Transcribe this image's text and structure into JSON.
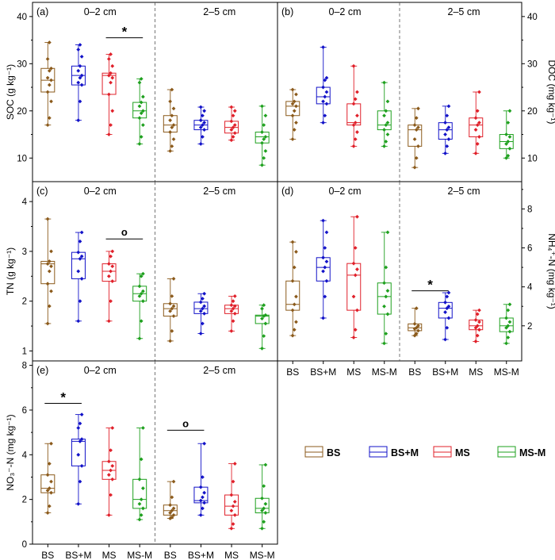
{
  "colors": {
    "BS": "#8B5A1B",
    "BS+M": "#1212C8",
    "MS": "#E0202A",
    "MS-M": "#1EA01E"
  },
  "groups": [
    "BS",
    "BS+M",
    "MS",
    "MS-M"
  ],
  "depth_labels": [
    "0–2 cm",
    "2–5 cm"
  ],
  "legend": [
    "BS",
    "BS+M",
    "MS",
    "MS-M"
  ],
  "chart_data": [
    {
      "type": "box",
      "panel_label": "(a)",
      "ylabel": "SOC (g kg⁻¹)",
      "y_axis_side": "left",
      "ylim": [
        5,
        43
      ],
      "yticks": [
        10,
        20,
        30,
        40
      ],
      "series": [
        {
          "name": "BS",
          "depth": "0–2 cm",
          "q1": 24,
          "median": 26.5,
          "q3": 29,
          "whisker_low": 17,
          "whisker_high": 34.5,
          "points": [
            17,
            18.5,
            22,
            24,
            25.5,
            26.5,
            27,
            28.5,
            29,
            31,
            34.5
          ]
        },
        {
          "name": "BS+M",
          "depth": "0–2 cm",
          "q1": 25.5,
          "median": 27.5,
          "q3": 29.5,
          "whisker_low": 18,
          "whisker_high": 34,
          "points": [
            18,
            22,
            25.5,
            26,
            27,
            27.5,
            28.5,
            29.5,
            31.5,
            33,
            34
          ]
        },
        {
          "name": "MS",
          "depth": "0–2 cm",
          "q1": 23.5,
          "median": 27.5,
          "q3": 28,
          "whisker_low": 15,
          "whisker_high": 32,
          "points": [
            15,
            17,
            20,
            23.5,
            26,
            27,
            27.5,
            28,
            29.5,
            31,
            32
          ]
        },
        {
          "name": "MS-M",
          "depth": "0–2 cm",
          "q1": 18.5,
          "median": 20,
          "q3": 21.8,
          "whisker_low": 13,
          "whisker_high": 26.8,
          "points": [
            13,
            14.5,
            17,
            18.5,
            19.5,
            20,
            21,
            21.8,
            23,
            26,
            26.8
          ]
        },
        {
          "name": "BS",
          "depth": "2–5 cm",
          "q1": 15.5,
          "median": 17,
          "q3": 19,
          "whisker_low": 11.5,
          "whisker_high": 24.5,
          "points": [
            11.5,
            12.5,
            14,
            15.5,
            16.5,
            17,
            18,
            19,
            20.5,
            22,
            24.5
          ]
        },
        {
          "name": "BS+M",
          "depth": "2–5 cm",
          "q1": 16,
          "median": 17,
          "q3": 18,
          "whisker_low": 13,
          "whisker_high": 20.8,
          "points": [
            13,
            14.5,
            16,
            16.5,
            17,
            17.5,
            18,
            19,
            20,
            20.8
          ]
        },
        {
          "name": "MS",
          "depth": "2–5 cm",
          "q1": 15.3,
          "median": 16.5,
          "q3": 17.8,
          "whisker_low": 13.8,
          "whisker_high": 20.8,
          "points": [
            13.8,
            14.5,
            15.3,
            16,
            16.5,
            17,
            17.8,
            19,
            20,
            20.8
          ]
        },
        {
          "name": "MS-M",
          "depth": "2–5 cm",
          "q1": 13.2,
          "median": 14.5,
          "q3": 15.5,
          "whisker_low": 8.5,
          "whisker_high": 21,
          "points": [
            8.5,
            10,
            11.5,
            13.2,
            14,
            14.5,
            15.5,
            17,
            19,
            21
          ]
        }
      ],
      "annotations": [
        {
          "text": "*",
          "depth": "0–2 cm",
          "between": [
            "MS",
            "MS-M"
          ],
          "y": 35.5
        }
      ]
    },
    {
      "type": "box",
      "panel_label": "(b)",
      "ylabel": "DOC (mg kg⁻¹)",
      "y_axis_side": "right",
      "ylim": [
        5,
        43
      ],
      "yticks": [
        10,
        20,
        30,
        40
      ],
      "series": [
        {
          "name": "BS",
          "depth": "0–2 cm",
          "q1": 19,
          "median": 21,
          "q3": 22,
          "whisker_low": 14,
          "whisker_high": 24.5,
          "points": [
            14,
            16,
            17.5,
            19,
            20,
            21,
            21.5,
            22,
            23.5,
            24.5
          ]
        },
        {
          "name": "BS+M",
          "depth": "0–2 cm",
          "q1": 21.5,
          "median": 23,
          "q3": 25,
          "whisker_low": 17.5,
          "whisker_high": 33.5,
          "points": [
            17.5,
            19,
            21.5,
            22,
            23,
            24,
            25,
            26.5,
            27,
            33.5
          ]
        },
        {
          "name": "MS",
          "depth": "0–2 cm",
          "q1": 17,
          "median": 17.5,
          "q3": 21.5,
          "whisker_low": 12.5,
          "whisker_high": 29.5,
          "points": [
            12.5,
            14,
            15.5,
            17,
            17.5,
            19,
            21.5,
            22.5,
            24,
            29.5
          ]
        },
        {
          "name": "MS-M",
          "depth": "0–2 cm",
          "q1": 16,
          "median": 17,
          "q3": 20,
          "whisker_low": 12.5,
          "whisker_high": 26,
          "points": [
            12.5,
            13.5,
            15,
            16,
            17,
            17.5,
            19,
            20,
            22,
            26
          ]
        },
        {
          "name": "BS",
          "depth": "2–5 cm",
          "q1": 12.5,
          "median": 16,
          "q3": 17,
          "whisker_low": 8,
          "whisker_high": 20.5,
          "points": [
            8,
            10,
            12.5,
            14,
            16,
            16.5,
            17,
            18.5,
            20.5
          ]
        },
        {
          "name": "BS+M",
          "depth": "2–5 cm",
          "q1": 14,
          "median": 16,
          "q3": 17.5,
          "whisker_low": 11,
          "whisker_high": 21,
          "points": [
            11,
            12.5,
            14,
            15,
            16,
            16.5,
            17.5,
            19,
            21
          ]
        },
        {
          "name": "MS",
          "depth": "2–5 cm",
          "q1": 14.5,
          "median": 17,
          "q3": 18.5,
          "whisker_low": 11,
          "whisker_high": 24,
          "points": [
            11,
            13,
            14.5,
            16,
            17,
            17.5,
            18.5,
            20,
            24
          ]
        },
        {
          "name": "MS-M",
          "depth": "2–5 cm",
          "q1": 12,
          "median": 13.5,
          "q3": 15,
          "whisker_low": 10,
          "whisker_high": 20,
          "points": [
            10,
            10.5,
            12,
            13,
            13.5,
            14.5,
            15,
            17.5,
            20
          ]
        }
      ],
      "annotations": []
    },
    {
      "type": "box",
      "panel_label": "(c)",
      "ylabel": "TN (g kg⁻¹)",
      "y_axis_side": "left",
      "ylim": [
        0.8,
        4.4
      ],
      "yticks": [
        1,
        2,
        3,
        4
      ],
      "series": [
        {
          "name": "BS",
          "depth": "0–2 cm",
          "q1": 2.35,
          "median": 2.75,
          "q3": 2.8,
          "whisker_low": 1.55,
          "whisker_high": 3.65,
          "points": [
            1.55,
            1.9,
            2.2,
            2.35,
            2.6,
            2.7,
            2.75,
            2.8,
            3.0,
            3.65
          ]
        },
        {
          "name": "BS+M",
          "depth": "0–2 cm",
          "q1": 2.45,
          "median": 2.85,
          "q3": 2.98,
          "whisker_low": 1.6,
          "whisker_high": 3.38,
          "points": [
            1.6,
            2.0,
            2.45,
            2.6,
            2.85,
            2.9,
            2.98,
            3.2,
            3.38
          ]
        },
        {
          "name": "MS",
          "depth": "0–2 cm",
          "q1": 2.4,
          "median": 2.6,
          "q3": 2.75,
          "whisker_low": 1.6,
          "whisker_high": 3.0,
          "points": [
            1.6,
            2.0,
            2.4,
            2.5,
            2.6,
            2.7,
            2.75,
            2.9,
            3.0
          ]
        },
        {
          "name": "MS-M",
          "depth": "0–2 cm",
          "q1": 2.0,
          "median": 2.15,
          "q3": 2.3,
          "whisker_low": 1.25,
          "whisker_high": 2.55,
          "points": [
            1.25,
            1.6,
            2.0,
            2.1,
            2.15,
            2.2,
            2.3,
            2.5,
            2.55
          ]
        },
        {
          "name": "BS",
          "depth": "2–5 cm",
          "q1": 1.7,
          "median": 1.85,
          "q3": 1.95,
          "whisker_low": 1.2,
          "whisker_high": 2.45,
          "points": [
            1.2,
            1.4,
            1.7,
            1.8,
            1.85,
            1.9,
            1.95,
            2.1,
            2.45
          ]
        },
        {
          "name": "BS+M",
          "depth": "2–5 cm",
          "q1": 1.75,
          "median": 1.85,
          "q3": 1.98,
          "whisker_low": 1.35,
          "whisker_high": 2.15,
          "points": [
            1.35,
            1.55,
            1.75,
            1.8,
            1.85,
            1.9,
            1.98,
            2.05,
            2.15
          ]
        },
        {
          "name": "MS",
          "depth": "2–5 cm",
          "q1": 1.75,
          "median": 1.85,
          "q3": 1.92,
          "whisker_low": 1.4,
          "whisker_high": 2.1,
          "points": [
            1.4,
            1.6,
            1.75,
            1.8,
            1.85,
            1.9,
            1.92,
            2.0,
            2.1
          ]
        },
        {
          "name": "MS-M",
          "depth": "2–5 cm",
          "q1": 1.55,
          "median": 1.7,
          "q3": 1.72,
          "whisker_low": 1.05,
          "whisker_high": 1.92,
          "points": [
            1.05,
            1.3,
            1.55,
            1.65,
            1.7,
            1.72,
            1.85,
            1.92
          ]
        }
      ],
      "annotations": [
        {
          "text": "o",
          "depth": "0–2 cm",
          "between": [
            "MS",
            "MS-M"
          ],
          "y": 3.25
        }
      ]
    },
    {
      "type": "box",
      "panel_label": "(d)",
      "ylabel": "NH₄⁺-N (mg kg⁻¹)",
      "y_axis_side": "right",
      "ylim": [
        0.2,
        9.4
      ],
      "yticks": [
        2,
        4,
        6,
        8
      ],
      "xticklabels": [
        "BS",
        "BS+M",
        "MS",
        "MS-M",
        "BS",
        "BS+M",
        "MS",
        "MS-M"
      ],
      "series": [
        {
          "name": "BS",
          "depth": "0–2 cm",
          "q1": 2.8,
          "median": 3.1,
          "q3": 4.3,
          "whisker_low": 1.5,
          "whisker_high": 6.3,
          "points": [
            1.5,
            1.8,
            2.2,
            2.8,
            3.1,
            3.5,
            4.3,
            5.0,
            5.8,
            6.3
          ]
        },
        {
          "name": "BS+M",
          "depth": "0–2 cm",
          "q1": 4.3,
          "median": 5.0,
          "q3": 5.5,
          "whisker_low": 2.4,
          "whisker_high": 7.4,
          "points": [
            2.4,
            3.5,
            4.3,
            4.8,
            5.0,
            5.3,
            5.5,
            6.0,
            6.8,
            7.4
          ]
        },
        {
          "name": "MS",
          "depth": "0–2 cm",
          "q1": 2.8,
          "median": 4.6,
          "q3": 5.2,
          "whisker_low": 1.4,
          "whisker_high": 7.6,
          "points": [
            1.4,
            1.8,
            2.8,
            3.5,
            4.6,
            4.9,
            5.2,
            6.0,
            7.6
          ]
        },
        {
          "name": "MS-M",
          "depth": "0–2 cm",
          "q1": 2.6,
          "median": 3.5,
          "q3": 4.2,
          "whisker_low": 1.1,
          "whisker_high": 6.8,
          "points": [
            1.1,
            1.6,
            2.6,
            3.0,
            3.5,
            3.8,
            4.2,
            5.0,
            6.8
          ]
        },
        {
          "name": "BS",
          "depth": "2–5 cm",
          "q1": 1.75,
          "median": 1.9,
          "q3": 2.1,
          "whisker_low": 1.5,
          "whisker_high": 2.9,
          "points": [
            1.5,
            1.6,
            1.75,
            1.85,
            1.9,
            2.0,
            2.1,
            2.9
          ]
        },
        {
          "name": "BS+M",
          "depth": "2–5 cm",
          "q1": 2.4,
          "median": 2.9,
          "q3": 3.2,
          "whisker_low": 1.3,
          "whisker_high": 3.7,
          "points": [
            1.3,
            1.9,
            2.4,
            2.7,
            2.9,
            3.0,
            3.2,
            3.5,
            3.7
          ]
        },
        {
          "name": "MS",
          "depth": "2–5 cm",
          "q1": 1.8,
          "median": 2.0,
          "q3": 2.3,
          "whisker_low": 1.2,
          "whisker_high": 2.8,
          "points": [
            1.2,
            1.5,
            1.8,
            1.9,
            2.0,
            2.2,
            2.3,
            2.6,
            2.8
          ]
        },
        {
          "name": "MS-M",
          "depth": "2–5 cm",
          "q1": 1.7,
          "median": 2.0,
          "q3": 2.4,
          "whisker_low": 1.1,
          "whisker_high": 3.1,
          "points": [
            1.1,
            1.4,
            1.7,
            1.9,
            2.0,
            2.2,
            2.4,
            2.8,
            3.1
          ]
        }
      ],
      "annotations": [
        {
          "text": "*",
          "depth": "2–5 cm",
          "between": [
            "BS",
            "BS+M"
          ],
          "y": 3.8
        }
      ]
    },
    {
      "type": "box",
      "panel_label": "(e)",
      "ylabel": "NO₃⁻-N (mg kg⁻¹)",
      "y_axis_side": "left",
      "ylim": [
        0,
        8.2
      ],
      "yticks": [
        0,
        2,
        4,
        6,
        8
      ],
      "xticklabels": [
        "BS",
        "BS+M",
        "MS",
        "MS-M",
        "BS",
        "BS+M",
        "MS",
        "MS-M"
      ],
      "series": [
        {
          "name": "BS",
          "depth": "0–2 cm",
          "q1": 2.3,
          "median": 2.5,
          "q3": 3.1,
          "whisker_low": 1.4,
          "whisker_high": 4.5,
          "points": [
            1.4,
            1.7,
            2.3,
            2.4,
            2.5,
            2.8,
            3.1,
            3.6,
            4.5
          ]
        },
        {
          "name": "BS+M",
          "depth": "0–2 cm",
          "q1": 3.5,
          "median": 4.6,
          "q3": 4.7,
          "whisker_low": 1.8,
          "whisker_high": 5.8,
          "points": [
            1.8,
            2.8,
            3.5,
            4.0,
            4.6,
            4.7,
            5.2,
            5.4,
            5.8
          ]
        },
        {
          "name": "MS",
          "depth": "0–2 cm",
          "q1": 2.9,
          "median": 3.3,
          "q3": 3.7,
          "whisker_low": 1.3,
          "whisker_high": 5.2,
          "points": [
            1.3,
            2.2,
            2.9,
            3.1,
            3.3,
            3.5,
            3.7,
            4.2,
            5.2
          ]
        },
        {
          "name": "MS-M",
          "depth": "0–2 cm",
          "q1": 1.6,
          "median": 2.0,
          "q3": 2.9,
          "whisker_low": 1.1,
          "whisker_high": 5.2,
          "points": [
            1.1,
            1.3,
            1.6,
            1.8,
            2.0,
            2.5,
            2.9,
            3.8,
            5.2
          ]
        },
        {
          "name": "BS",
          "depth": "2–5 cm",
          "q1": 1.3,
          "median": 1.5,
          "q3": 1.75,
          "whisker_low": 1.15,
          "whisker_high": 2.8,
          "points": [
            1.15,
            1.2,
            1.3,
            1.4,
            1.5,
            1.6,
            1.75,
            2.1,
            2.8
          ]
        },
        {
          "name": "BS+M",
          "depth": "2–5 cm",
          "q1": 1.85,
          "median": 1.95,
          "q3": 2.55,
          "whisker_low": 1.3,
          "whisker_high": 4.5,
          "points": [
            1.3,
            1.6,
            1.85,
            1.95,
            2.1,
            2.3,
            2.55,
            3.0,
            4.5
          ]
        },
        {
          "name": "MS",
          "depth": "2–5 cm",
          "q1": 1.3,
          "median": 1.7,
          "q3": 2.2,
          "whisker_low": 0.7,
          "whisker_high": 3.6,
          "points": [
            0.7,
            0.9,
            1.3,
            1.5,
            1.7,
            1.9,
            2.2,
            2.8,
            3.6
          ]
        },
        {
          "name": "MS-M",
          "depth": "2–5 cm",
          "q1": 1.4,
          "median": 1.6,
          "q3": 2.05,
          "whisker_low": 0.7,
          "whisker_high": 3.55,
          "points": [
            0.7,
            1.0,
            1.4,
            1.5,
            1.6,
            1.8,
            2.05,
            2.6,
            3.55
          ]
        }
      ],
      "annotations": [
        {
          "text": "*",
          "depth": "0–2 cm",
          "between": [
            "BS",
            "BS+M"
          ],
          "y": 6.3
        },
        {
          "text": "o",
          "depth": "2–5 cm",
          "between": [
            "BS",
            "BS+M"
          ],
          "y": 5.1
        }
      ]
    }
  ]
}
